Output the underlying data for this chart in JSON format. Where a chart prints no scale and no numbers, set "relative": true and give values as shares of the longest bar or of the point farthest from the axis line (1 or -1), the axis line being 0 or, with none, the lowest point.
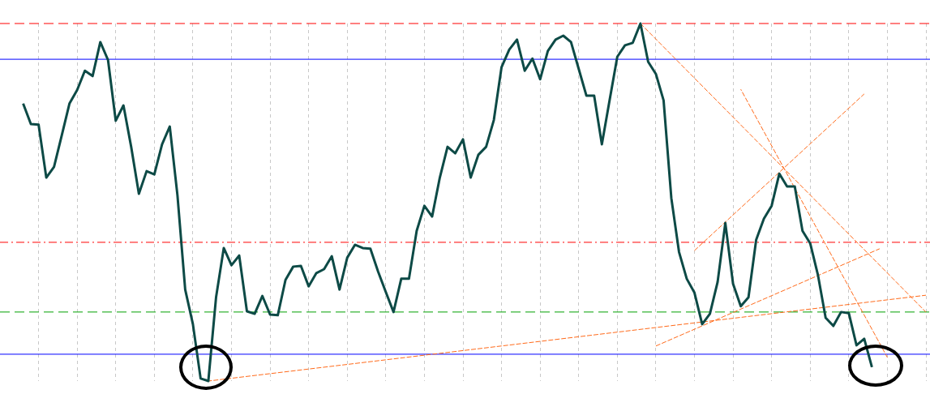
{
  "chart_data": {
    "type": "line",
    "relative": true,
    "grid": "x",
    "legend": false,
    "marker": "none",
    "categories": [
      null,
      null,
      null,
      null,
      null,
      null,
      null,
      null,
      null,
      null,
      null,
      null,
      null,
      null,
      null,
      null,
      null,
      null,
      null,
      null,
      null,
      null,
      null,
      null,
      null,
      null,
      null,
      null,
      null,
      null,
      null,
      null,
      null,
      null,
      null,
      null,
      null,
      null,
      null,
      null,
      null,
      null,
      null,
      null,
      null,
      null,
      null,
      null,
      null,
      null,
      null,
      null,
      null,
      null,
      null,
      null,
      null,
      null,
      null,
      null,
      null,
      null,
      null,
      null,
      null,
      null,
      null,
      null,
      null,
      null,
      null,
      null,
      null,
      null,
      null,
      null,
      null,
      null,
      null,
      null,
      null,
      null,
      null,
      null,
      null,
      null,
      null,
      null,
      null,
      null,
      null,
      null,
      null,
      null,
      null,
      null,
      null,
      null,
      null,
      null,
      null,
      null,
      null,
      null,
      null,
      null,
      null,
      null,
      null,
      null,
      null,
      null,
      null,
      null,
      null,
      null,
      null,
      null,
      null,
      null,
      null
    ],
    "series": [
      {
        "color": "#0d4a46",
        "line_style": "solid",
        "values": [
          null,
          null,
          null,
          0.776,
          0.719,
          0.717,
          0.569,
          0.599,
          0.687,
          0.776,
          0.814,
          0.868,
          0.853,
          0.948,
          0.898,
          0.728,
          0.771,
          0.655,
          0.524,
          0.587,
          0.578,
          0.662,
          0.712,
          0.519,
          0.256,
          0.159,
          0.007,
          0,
          0.234,
          0.372,
          0.324,
          0.351,
          0.195,
          0.188,
          0.238,
          0.186,
          0.184,
          0.283,
          0.32,
          0.322,
          0.265,
          0.302,
          0.313,
          0.349,
          0.256,
          0.345,
          0.381,
          0.372,
          0.37,
          0.306,
          0.249,
          0.193,
          0.286,
          0.286,
          0.42,
          0.49,
          0.46,
          0.569,
          0.655,
          0.637,
          0.676,
          0.569,
          0.633,
          0.655,
          0.73,
          0.878,
          0.927,
          0.955,
          0.868,
          0.902,
          0.844,
          0.923,
          0.955,
          0.966,
          0.948,
          0.873,
          0.798,
          0.798,
          0.662,
          0.785,
          0.907,
          0.939,
          0.946,
          1,
          0.893,
          0.859,
          0.785,
          0.512,
          0.361,
          0.286,
          0.247,
          0.159,
          0.188,
          0.277,
          0.442,
          0.272,
          0.209,
          0.234,
          0.395,
          0.454,
          0.49,
          0.58,
          0.544,
          0.544,
          0.42,
          0.385,
          0.297,
          0.177,
          0.154,
          0.193,
          0.19,
          0.1,
          0.118,
          0.039,
          null,
          null,
          null,
          null,
          null,
          null,
          null
        ]
      },
      {
        "color": "#ff6a1a",
        "line_style": "dashed",
        "values": [
          null,
          null,
          null,
          null,
          null,
          null,
          null,
          null,
          null,
          null,
          null,
          null,
          null,
          null,
          null,
          null,
          null,
          null,
          null,
          null,
          null,
          null,
          null,
          null,
          null,
          null,
          null,
          0,
          null,
          null,
          null,
          null,
          null,
          null,
          null,
          null,
          null,
          null,
          null,
          null,
          null,
          null,
          null,
          null,
          null,
          null,
          null,
          null,
          null,
          null,
          null,
          null,
          null,
          null,
          null,
          null,
          null,
          null,
          null,
          null,
          null,
          null,
          null,
          null,
          null,
          null,
          null,
          null,
          null,
          null,
          null,
          null,
          null,
          null,
          null,
          null,
          null,
          null,
          null,
          null,
          null,
          null,
          null,
          null,
          null,
          null,
          null,
          null,
          null,
          null,
          null,
          null,
          null,
          null,
          null,
          null,
          null,
          null,
          null,
          null,
          null,
          null,
          null,
          null,
          null,
          null,
          null,
          null,
          null,
          null,
          null,
          null,
          null,
          null,
          null,
          null,
          null,
          null,
          null,
          null,
          0.24
        ]
      },
      {
        "color": "#ff6a1a",
        "line_style": "dashed",
        "values": [
          null,
          null,
          null,
          null,
          null,
          null,
          null,
          null,
          null,
          null,
          null,
          null,
          null,
          null,
          null,
          null,
          null,
          null,
          null,
          null,
          null,
          null,
          null,
          null,
          null,
          null,
          null,
          null,
          null,
          null,
          null,
          null,
          null,
          null,
          null,
          null,
          null,
          null,
          null,
          null,
          null,
          null,
          null,
          null,
          null,
          null,
          null,
          null,
          null,
          null,
          null,
          null,
          null,
          null,
          null,
          null,
          null,
          null,
          null,
          null,
          null,
          null,
          null,
          null,
          null,
          null,
          null,
          null,
          null,
          null,
          null,
          null,
          null,
          null,
          null,
          null,
          null,
          null,
          null,
          null,
          null,
          null,
          null,
          null,
          null,
          0.098,
          null,
          null,
          null,
          null,
          null,
          null,
          null,
          null,
          null,
          null,
          null,
          null,
          null,
          null,
          null,
          null,
          null,
          null,
          null,
          null,
          null,
          null,
          null,
          null,
          null,
          null,
          null,
          null,
          0.37,
          null,
          null,
          null,
          null,
          null,
          null
        ]
      },
      {
        "color": "#ff6a1a",
        "line_style": "dashed",
        "values": [
          null,
          null,
          null,
          null,
          null,
          null,
          null,
          null,
          null,
          null,
          null,
          null,
          null,
          null,
          null,
          null,
          null,
          null,
          null,
          null,
          null,
          null,
          null,
          null,
          null,
          null,
          null,
          null,
          null,
          null,
          null,
          null,
          null,
          null,
          null,
          null,
          null,
          null,
          null,
          null,
          null,
          null,
          null,
          null,
          null,
          null,
          null,
          null,
          null,
          null,
          null,
          null,
          null,
          null,
          null,
          null,
          null,
          null,
          null,
          null,
          null,
          null,
          null,
          null,
          null,
          null,
          null,
          null,
          null,
          null,
          null,
          null,
          null,
          null,
          null,
          null,
          null,
          null,
          null,
          null,
          null,
          null,
          null,
          null,
          null,
          null,
          null,
          null,
          null,
          null,
          0.365,
          null,
          null,
          null,
          null,
          null,
          null,
          null,
          null,
          null,
          null,
          null,
          null,
          null,
          null,
          null,
          null,
          null,
          null,
          null,
          null,
          null,
          0.803,
          null,
          null,
          null,
          null,
          null,
          null,
          null,
          null
        ]
      },
      {
        "color": "#ff6a1a",
        "line_style": "dashed",
        "values": [
          null,
          null,
          null,
          null,
          null,
          null,
          null,
          null,
          null,
          null,
          null,
          null,
          null,
          null,
          null,
          null,
          null,
          null,
          null,
          null,
          null,
          null,
          null,
          null,
          null,
          null,
          null,
          null,
          null,
          null,
          null,
          null,
          null,
          null,
          null,
          null,
          null,
          null,
          null,
          null,
          null,
          null,
          null,
          null,
          null,
          null,
          null,
          null,
          null,
          null,
          null,
          null,
          null,
          null,
          null,
          null,
          null,
          null,
          null,
          null,
          null,
          null,
          null,
          null,
          null,
          null,
          null,
          null,
          null,
          null,
          null,
          null,
          null,
          null,
          null,
          null,
          null,
          null,
          null,
          null,
          null,
          null,
          null,
          1,
          null,
          null,
          null,
          null,
          null,
          null,
          null,
          null,
          null,
          null,
          null,
          null,
          null,
          null,
          null,
          null,
          null,
          null,
          null,
          null,
          null,
          null,
          null,
          null,
          null,
          null,
          null,
          null,
          null,
          null,
          null,
          null,
          null,
          null,
          null,
          null,
          0.193
        ]
      },
      {
        "color": "#ff6a1a",
        "line_style": "dashed",
        "values": [
          null,
          null,
          null,
          null,
          null,
          null,
          null,
          null,
          null,
          null,
          null,
          null,
          null,
          null,
          null,
          null,
          null,
          null,
          null,
          null,
          null,
          null,
          null,
          null,
          null,
          null,
          null,
          null,
          null,
          null,
          null,
          null,
          null,
          null,
          null,
          null,
          null,
          null,
          null,
          null,
          null,
          null,
          null,
          null,
          null,
          null,
          null,
          null,
          null,
          null,
          null,
          null,
          null,
          null,
          null,
          null,
          null,
          null,
          null,
          null,
          null,
          null,
          null,
          null,
          null,
          null,
          null,
          null,
          null,
          null,
          null,
          null,
          null,
          null,
          null,
          null,
          null,
          null,
          null,
          null,
          null,
          null,
          null,
          null,
          null,
          null,
          null,
          null,
          null,
          null,
          null,
          null,
          null,
          null,
          null,
          null,
          0.816,
          null,
          null,
          null,
          null,
          null,
          null,
          null,
          null,
          null,
          null,
          null,
          null,
          null,
          null,
          null,
          null,
          null,
          null,
          0.066,
          null,
          null,
          null,
          null,
          null
        ]
      }
    ],
    "ref_lines": [
      {
        "axis": "y",
        "value": 1,
        "color": "#ff0000",
        "line_style": "dashed"
      },
      {
        "axis": "y",
        "value": 0.9,
        "color": "#0000ff",
        "line_style": "solid"
      },
      {
        "axis": "y",
        "value": 0.388,
        "color": "#ff0000",
        "line_style": "dashdot"
      },
      {
        "axis": "y",
        "value": 0.193,
        "color": "#00a000",
        "line_style": "dashed"
      },
      {
        "axis": "y",
        "value": 0.075,
        "color": "#0000ff",
        "line_style": "solid"
      }
    ]
  }
}
